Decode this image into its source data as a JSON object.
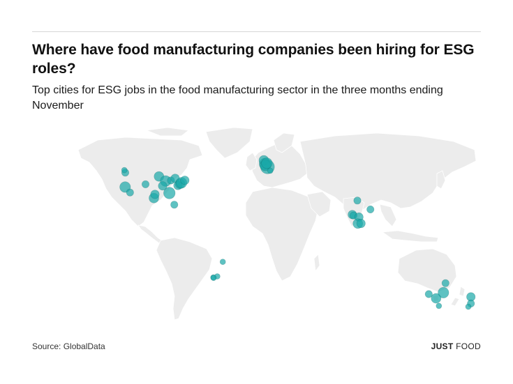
{
  "title": "Where have food manufacturing companies been hiring for ESG roles?",
  "subtitle": "Top cities for ESG jobs in the food manufacturing sector in the three months ending November",
  "source": "Source: GlobalData",
  "logo": {
    "word1": "JUST",
    "word2": "FOOD"
  },
  "colors": {
    "bubble": "#1aa8a8",
    "land": "#ececec",
    "border": "#ffffff"
  },
  "chart_data": {
    "type": "scatter",
    "title": "Where have food manufacturing companies been hiring for ESG roles?",
    "subtitle": "Top cities for ESG jobs in the food manufacturing sector in the three months ending November",
    "encoding": "bubble map; circle area ~ number of ESG job postings; overlap darkens",
    "points": [
      {
        "lon": -122.4,
        "lat": 37.8,
        "size": 5
      },
      {
        "lon": -122.3,
        "lat": 47.6,
        "size": 2
      },
      {
        "lon": -118.2,
        "lat": 34.1,
        "size": 2
      },
      {
        "lon": -123.1,
        "lat": 49.3,
        "size": 1
      },
      {
        "lon": -104.9,
        "lat": 39.7,
        "size": 2
      },
      {
        "lon": -97.7,
        "lat": 30.3,
        "size": 4
      },
      {
        "lon": -96.8,
        "lat": 32.8,
        "size": 3
      },
      {
        "lon": -93.3,
        "lat": 45.0,
        "size": 4
      },
      {
        "lon": -87.6,
        "lat": 41.9,
        "size": 5
      },
      {
        "lon": -84.4,
        "lat": 33.7,
        "size": 6
      },
      {
        "lon": -83.0,
        "lat": 42.3,
        "size": 2
      },
      {
        "lon": -79.4,
        "lat": 43.7,
        "size": 3
      },
      {
        "lon": -77.0,
        "lat": 38.9,
        "size": 3
      },
      {
        "lon": -75.2,
        "lat": 40.0,
        "size": 4
      },
      {
        "lon": -74.0,
        "lat": 40.7,
        "size": 5
      },
      {
        "lon": -71.1,
        "lat": 42.4,
        "size": 3
      },
      {
        "lon": -80.2,
        "lat": 25.8,
        "size": 2
      },
      {
        "lon": -90.2,
        "lat": 38.6,
        "size": 3
      },
      {
        "lon": -0.1,
        "lat": 51.5,
        "size": 9
      },
      {
        "lon": -2.2,
        "lat": 53.5,
        "size": 6
      },
      {
        "lon": -3.2,
        "lat": 55.9,
        "size": 4
      },
      {
        "lon": -1.9,
        "lat": 52.5,
        "size": 5
      },
      {
        "lon": -0.6,
        "lat": 54.0,
        "size": 5
      },
      {
        "lon": 2.3,
        "lat": 48.9,
        "size": 1
      },
      {
        "lon": 77.2,
        "lat": 28.6,
        "size": 2
      },
      {
        "lon": 72.9,
        "lat": 19.1,
        "size": 3
      },
      {
        "lon": 73.9,
        "lat": 18.5,
        "size": 2
      },
      {
        "lon": 78.5,
        "lat": 17.4,
        "size": 3
      },
      {
        "lon": 77.6,
        "lat": 13.0,
        "size": 4
      },
      {
        "lon": 80.3,
        "lat": 13.1,
        "size": 3
      },
      {
        "lon": 88.4,
        "lat": 22.6,
        "size": 2
      },
      {
        "lon": -38.5,
        "lat": -13.0,
        "size": 1
      },
      {
        "lon": -46.6,
        "lat": -23.6,
        "size": 1
      },
      {
        "lon": -43.2,
        "lat": -22.9,
        "size": 1
      },
      {
        "lon": -46.4,
        "lat": -23.9,
        "size": 1
      },
      {
        "lon": 151.2,
        "lat": -33.9,
        "size": 5
      },
      {
        "lon": 144.9,
        "lat": -37.8,
        "size": 4
      },
      {
        "lon": 138.6,
        "lat": -34.9,
        "size": 2
      },
      {
        "lon": 153.0,
        "lat": -27.5,
        "size": 2
      },
      {
        "lon": 147.3,
        "lat": -42.9,
        "size": 1
      },
      {
        "lon": 174.8,
        "lat": -36.8,
        "size": 3
      },
      {
        "lon": 174.8,
        "lat": -41.3,
        "size": 2
      },
      {
        "lon": 172.6,
        "lat": -43.5,
        "size": 1
      }
    ]
  }
}
